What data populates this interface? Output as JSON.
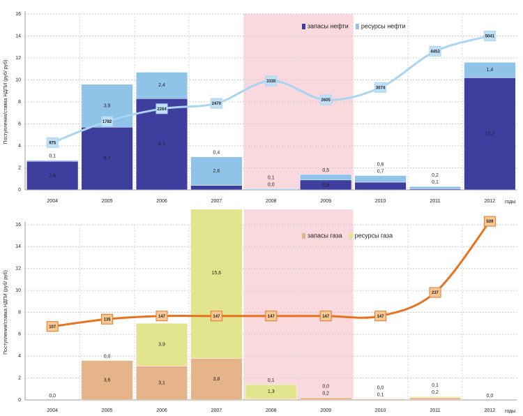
{
  "chart_data": [
    {
      "type": "bar",
      "stacked": true,
      "grid": true,
      "y_label": "Поступления/ставка НДПИ (руб/ руб)",
      "x_label": "годы",
      "categories": [
        "2004",
        "2005",
        "2006",
        "2007",
        "2008",
        "2009",
        "2010",
        "2011",
        "2012"
      ],
      "highlight": {
        "from": "2008",
        "to": "2009",
        "color": "#f7d0d6"
      },
      "ylim": [
        0,
        16
      ],
      "yticks": [
        0,
        2,
        4,
        6,
        8,
        10,
        12,
        14,
        16
      ],
      "y2lim": [
        -827,
        5877
      ],
      "legend": "top-center",
      "series": [
        {
          "name": "запасы нефти",
          "color": "#3e3e9e",
          "values": [
            2.6,
            5.7,
            8.3,
            0.4,
            0.0,
            0.9,
            0.7,
            0.1,
            10.2
          ],
          "value_labels": [
            "2,6",
            "5,7",
            "8,3",
            "0,4",
            "0,0",
            "0,9",
            "0,7",
            "0,1",
            "10,2"
          ]
        },
        {
          "name": "ресурсы нефти",
          "color": "#8fc3e8",
          "values": [
            0.1,
            3.9,
            2.4,
            2.6,
            0.1,
            0.5,
            0.6,
            0.2,
            1.4
          ],
          "value_labels": [
            "0,1",
            "3,9",
            "2,4",
            "2,6",
            "0,1",
            "0,5",
            "0,6",
            "0,2",
            "1,4"
          ]
        },
        {
          "type": "line",
          "axis": "y2",
          "color": "#a9d5f2",
          "marker_color": "#bfe0f7",
          "values": [
            975,
            1782,
            2264,
            2470,
            3330,
            2605,
            3074,
            4453,
            5041
          ]
        }
      ]
    },
    {
      "type": "bar",
      "stacked": true,
      "grid": true,
      "y_label": "Поступления/ставка НДПИ (руб/ руб)",
      "x_label": "годы",
      "categories": [
        "2004",
        "2005",
        "2006",
        "2007",
        "2008",
        "2009",
        "2010",
        "2011",
        "2012"
      ],
      "highlight": {
        "from": "2008",
        "to": "2009",
        "color": "#f7d0d6"
      },
      "ylim": [
        0,
        16
      ],
      "yticks": [
        0,
        2,
        4,
        6,
        8,
        10,
        12,
        14,
        16
      ],
      "y2lim": [
        -174,
        496
      ],
      "legend": "top-center",
      "series": [
        {
          "name": "запасы газа",
          "color": "#e5b488",
          "values": [
            0.0,
            3.6,
            3.1,
            3.8,
            0.1,
            0.2,
            0.1,
            0.2,
            0.0
          ],
          "value_labels": [
            "0,0",
            "3,6",
            "3,1",
            "3,8",
            "0,1",
            "0,2",
            "0,1",
            "0,2",
            "0,0"
          ]
        },
        {
          "name": "ресурсы газа",
          "color": "#e3e48e",
          "values": [
            null,
            0.0,
            3.9,
            15.6,
            1.3,
            0.0,
            0.0,
            0.1,
            null
          ],
          "value_labels": [
            null,
            "0,0",
            "3,9",
            "15,6",
            "1,3",
            "0,0",
            "0,0",
            "0,1",
            null
          ]
        },
        {
          "type": "line",
          "axis": "y2",
          "color": "#e8731f",
          "marker_color": "#f9c995",
          "values": [
            107,
            135,
            147,
            147,
            147,
            147,
            147,
            237,
            509
          ]
        }
      ]
    }
  ]
}
